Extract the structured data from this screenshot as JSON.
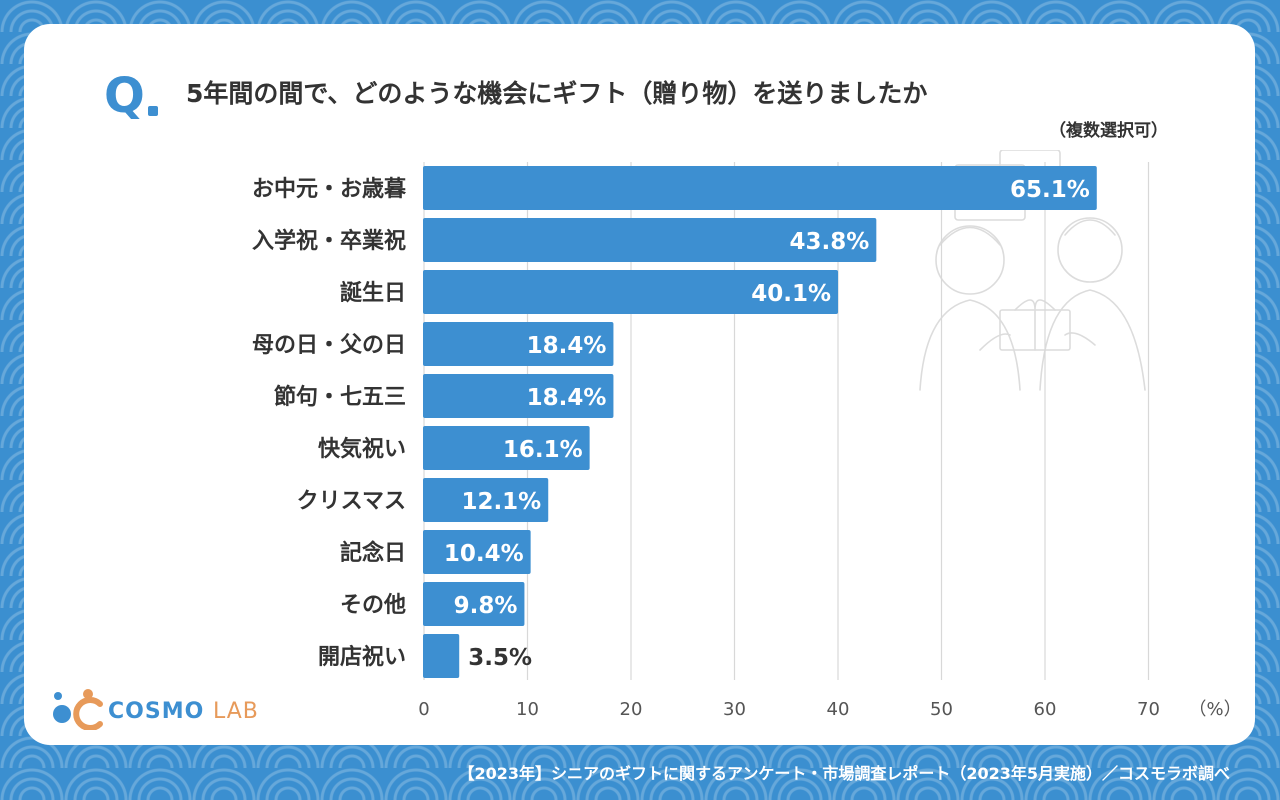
{
  "page": {
    "q_mark": "Q",
    "footer": "【2023年】シニアのギフトに関するアンケート・市場調査レポート（2023年5月実施）／コスモラボ調べ",
    "logo": {
      "main": "COSMO",
      "sub": "LAB"
    }
  },
  "colors": {
    "bar": "#3d8fd1",
    "accent": "#e79a5a",
    "background": "#3b8fd0"
  },
  "chart_data": {
    "type": "bar",
    "orientation": "horizontal",
    "title": "5年間の間で、どのような機会にギフト（贈り物）を送りましたか",
    "subtitle": "（複数選択可）",
    "unit": "（%）",
    "categories": [
      "お中元・お歳暮",
      "入学祝・卒業祝",
      "誕生日",
      "母の日・父の日",
      "節句・七五三",
      "快気祝い",
      "クリスマス",
      "記念日",
      "その他",
      "開店祝い"
    ],
    "values": [
      65.1,
      43.8,
      40.1,
      18.4,
      18.4,
      16.1,
      12.1,
      10.4,
      9.8,
      3.5
    ],
    "value_labels": [
      "65.1%",
      "43.8%",
      "40.1%",
      "18.4%",
      "18.4%",
      "16.1%",
      "12.1%",
      "10.4%",
      "9.8%",
      "3.5%"
    ],
    "xlim": [
      0,
      70
    ],
    "xticks": [
      "0",
      "10",
      "20",
      "30",
      "40",
      "50",
      "60",
      "70"
    ],
    "grid": true
  }
}
